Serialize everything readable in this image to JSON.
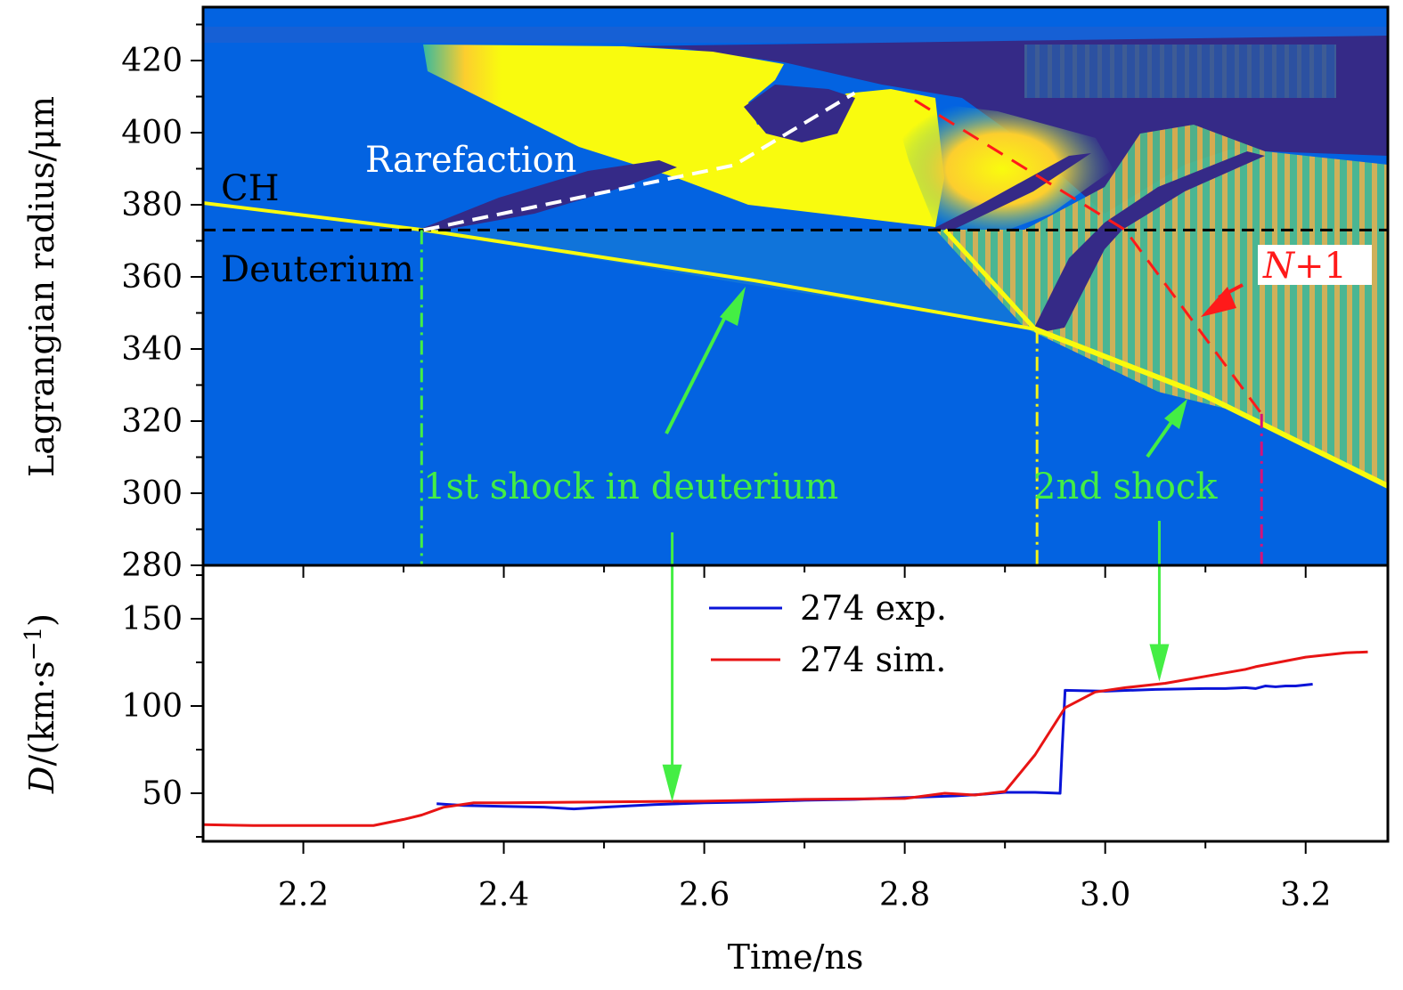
{
  "chart_data": [
    {
      "panel": "top",
      "type": "heatmap",
      "title": "",
      "xlabel": "Time/ns",
      "ylabel": "Lagrangian radius/μm",
      "xlim": [
        2.1,
        3.282
      ],
      "ylim": [
        280,
        433
      ],
      "yticks": [
        280,
        300,
        320,
        340,
        360,
        380,
        400,
        420
      ],
      "ytick_labels": [
        "280",
        "300",
        "320",
        "340",
        "360",
        "380",
        "400",
        "420"
      ],
      "colormap": [
        "#352a87",
        "#0363e1",
        "#1485d4",
        "#06a7c6",
        "#38b99e",
        "#92bf73",
        "#d9ba56",
        "#fcce2e",
        "#f9fb0e"
      ],
      "background_color": "#0363e1",
      "interface_radius": 373,
      "regions": [
        {
          "label": "CH",
          "color": "#000000"
        },
        {
          "label": "Deuterium",
          "color": "#000000"
        }
      ],
      "features": {
        "ch_interface_trajectory": {
          "x": [
            2.1,
            2.32,
            2.84
          ],
          "y": [
            380.5,
            373,
            373
          ]
        },
        "first_shock": {
          "x": [
            2.32,
            2.65,
            2.93
          ],
          "y": [
            373,
            359,
            345.5
          ]
        },
        "second_shock": {
          "x": [
            2.93,
            3.1,
            3.282
          ],
          "y": [
            345.5,
            327,
            302
          ]
        },
        "reflected_shock": {
          "x": [
            2.84,
            2.93
          ],
          "y": [
            373,
            345.5
          ]
        },
        "rarefaction_line": {
          "x": [
            2.32,
            2.63,
            2.75
          ],
          "y": [
            373,
            391,
            411
          ],
          "color": "#ffffff",
          "style": "dashed"
        },
        "n_plus_1_line": {
          "x": [
            2.81,
            3.02,
            3.156
          ],
          "y": [
            409,
            373,
            322
          ],
          "color": "#ff1a1a",
          "style": "dashed"
        }
      },
      "annotations": [
        {
          "text": "Rarefaction",
          "color": "#ffffff"
        },
        {
          "text": "1st shock in deuterium",
          "color": "#44ee44"
        },
        {
          "text": "2nd shock",
          "color": "#44ee44"
        },
        {
          "text": "N+1",
          "color": "#ff1a1a",
          "italic_part": "N",
          "boxed": true
        }
      ],
      "guide_lines": [
        {
          "x": 2.318,
          "color": "#44ee44",
          "style": "dash-dot"
        },
        {
          "x": 2.932,
          "color": "#f5f516",
          "style": "dash-dot"
        },
        {
          "x": 3.156,
          "color": "#d4147a",
          "style": "dash-dot"
        }
      ]
    },
    {
      "panel": "bottom",
      "type": "line",
      "xlabel": "Time/ns",
      "ylabel": "D/(km·s⁻¹)",
      "xlim": [
        2.1,
        3.282
      ],
      "ylim": [
        22,
        180
      ],
      "xticks": [
        2.2,
        2.4,
        2.6,
        2.8,
        3.0,
        3.2
      ],
      "xtick_labels": [
        "2.2",
        "2.4",
        "2.6",
        "2.8",
        "3.0",
        "3.2"
      ],
      "yticks": [
        50,
        100,
        150
      ],
      "ytick_labels": [
        "50",
        "100",
        "150"
      ],
      "legend_position": "top-center",
      "series": [
        {
          "name": "274 exp.",
          "color": "#0a14d8",
          "x": [
            2.333,
            2.36,
            2.4,
            2.44,
            2.47,
            2.5,
            2.55,
            2.6,
            2.65,
            2.7,
            2.75,
            2.8,
            2.85,
            2.88,
            2.9,
            2.93,
            2.955,
            2.957,
            2.96,
            3.0,
            3.05,
            3.1,
            3.12,
            3.14,
            3.15,
            3.16,
            3.17,
            3.18,
            3.19,
            3.207
          ],
          "y": [
            44,
            43,
            42.5,
            42,
            41,
            42,
            43.5,
            44.5,
            45,
            46,
            46.5,
            47.5,
            48.5,
            49.5,
            50.5,
            50.5,
            50,
            75,
            109,
            108.5,
            109.5,
            110,
            110,
            110.5,
            110,
            111.5,
            111,
            111.5,
            111.5,
            112.5
          ]
        },
        {
          "name": "274 sim.",
          "color": "#e81414",
          "x": [
            2.1,
            2.15,
            2.2,
            2.25,
            2.27,
            2.3,
            2.318,
            2.34,
            2.37,
            2.4,
            2.5,
            2.6,
            2.7,
            2.8,
            2.84,
            2.87,
            2.9,
            2.93,
            2.96,
            2.99,
            3.02,
            3.06,
            3.1,
            3.14,
            3.15,
            3.2,
            3.24,
            3.262
          ],
          "y": [
            32,
            31.5,
            31.5,
            31.5,
            31.5,
            35,
            37.5,
            42,
            44.5,
            44.5,
            45,
            45.5,
            46.5,
            47,
            50,
            49,
            51,
            72,
            99,
            108,
            110.5,
            113,
            117,
            121,
            122.5,
            128,
            130.5,
            131
          ]
        }
      ],
      "arrows": [
        {
          "from": [
            2.568,
            150
          ],
          "to": [
            2.568,
            45
          ],
          "color": "#44ee44"
        },
        {
          "from": [
            3.054,
            150
          ],
          "to": [
            3.054,
            114
          ],
          "color": "#44ee44"
        }
      ]
    }
  ],
  "labels": {
    "top_ylabel": "Lagrangian radius/μm",
    "bottom_ylabel_prefix": "D",
    "bottom_ylabel_rest": "/(km·s",
    "bottom_ylabel_sup": "−1",
    "bottom_ylabel_close": ")",
    "xlabel": "Time/ns",
    "ch": "CH",
    "deuterium": "Deuterium",
    "rarefaction": "Rarefaction",
    "first_shock": "1st shock in deuterium",
    "second_shock": "2nd shock",
    "n_plus_1_n": "N",
    "n_plus_1_rest": "+1",
    "legend_exp": "274 exp.",
    "legend_sim": "274 sim."
  }
}
